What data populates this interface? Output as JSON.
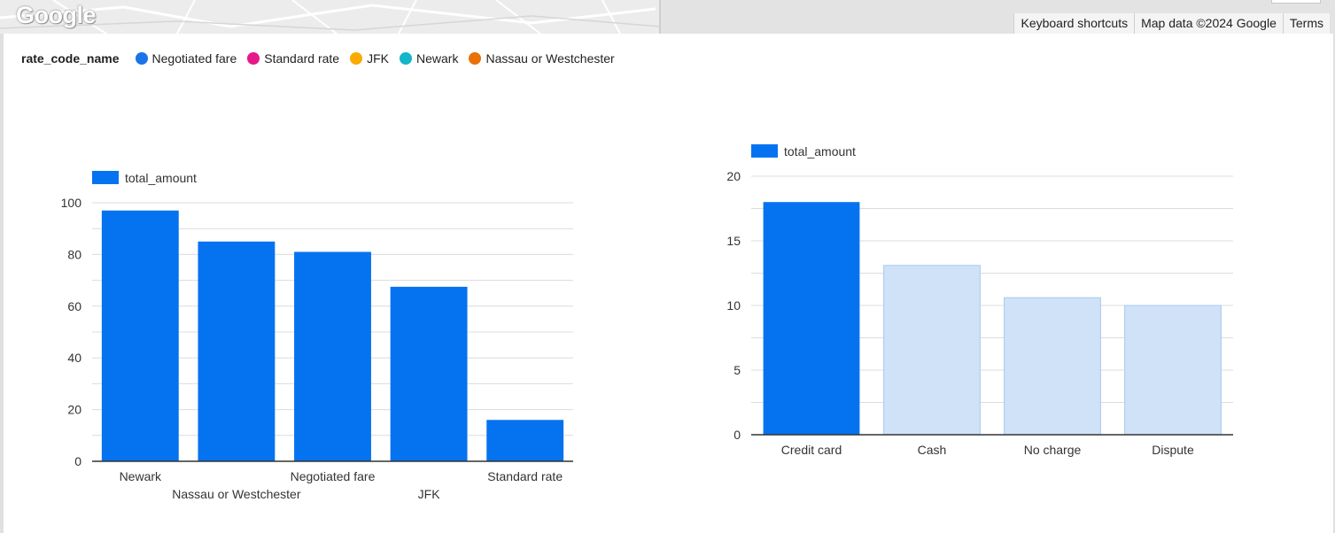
{
  "map": {
    "logo_text": "Google",
    "attribution": [
      {
        "key": "shortcuts",
        "label": "Keyboard shortcuts"
      },
      {
        "key": "map_data",
        "label": "Map data ©2024 Google"
      },
      {
        "key": "terms",
        "label": "Terms"
      }
    ]
  },
  "color_legend": {
    "title": "rate_code_name",
    "items": [
      {
        "label": "Negotiated fare",
        "color": "#1a73e8"
      },
      {
        "label": "Standard rate",
        "color": "#e8178a"
      },
      {
        "label": "JFK",
        "color": "#f9ab00"
      },
      {
        "label": "Newark",
        "color": "#12b5cb"
      },
      {
        "label": "Nassau or Westchester",
        "color": "#e8710a"
      }
    ]
  },
  "chart_data": [
    {
      "type": "bar",
      "legend": "total_amount",
      "legend_position": "top-left",
      "categories": [
        "Newark",
        "Nassau or Westchester",
        "Negotiated fare",
        "JFK",
        "Standard rate"
      ],
      "values": [
        97,
        85,
        81,
        67.5,
        16
      ],
      "ylim": [
        0,
        100
      ],
      "yticks": [
        0,
        20,
        40,
        60,
        80,
        100
      ],
      "grid": true,
      "bar_color": "#0573f0"
    },
    {
      "type": "bar",
      "legend": "total_amount",
      "legend_position": "top-left",
      "categories": [
        "Credit card",
        "Cash",
        "No charge",
        "Dispute"
      ],
      "values": [
        18,
        13.1,
        10.6,
        10
      ],
      "highlighted": [
        true,
        false,
        false,
        false
      ],
      "ylim": [
        0,
        20
      ],
      "yticks": [
        0,
        5,
        10,
        15,
        20
      ],
      "grid": true,
      "bar_color": "#0573f0",
      "muted_color": "#cfe2f8"
    }
  ]
}
